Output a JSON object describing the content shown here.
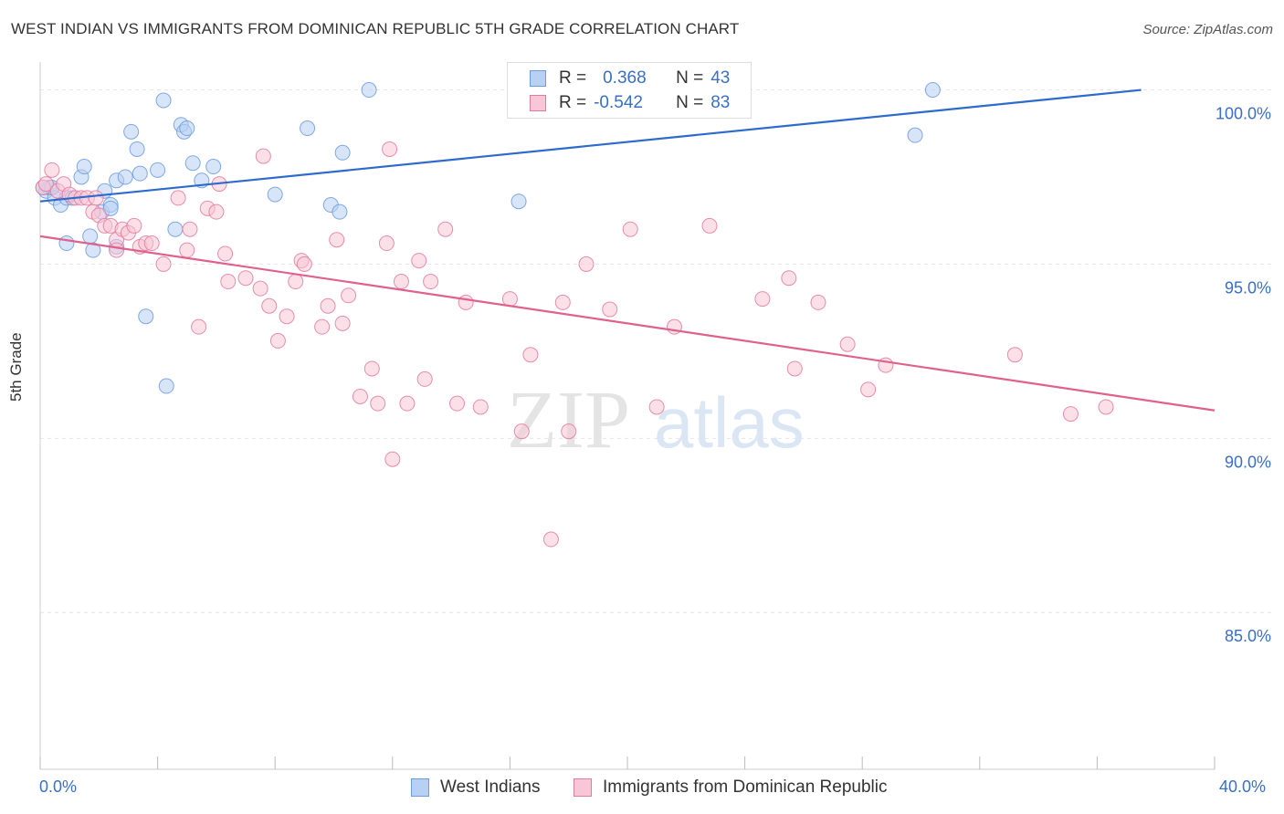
{
  "title": "WEST INDIAN VS IMMIGRANTS FROM DOMINICAN REPUBLIC 5TH GRADE CORRELATION CHART",
  "source": "Source: ZipAtlas.com",
  "watermark": {
    "zip": "ZIP",
    "atlas": "atlas"
  },
  "legend": {
    "r_label": "R =",
    "n_label": "N =",
    "rows": [
      {
        "r": "0.368",
        "n": "43",
        "color": "#6b9be0",
        "fill": "#b8d0f3"
      },
      {
        "r": "-0.542",
        "n": "83",
        "color": "#e37aa0",
        "fill": "#f8c6d6"
      }
    ]
  },
  "bottom_legend": [
    "West Indians",
    "Immigrants from Dominican Republic"
  ],
  "chart_data": {
    "type": "scatter",
    "title": "WEST INDIAN VS IMMIGRANTS FROM DOMINICAN REPUBLIC 5TH GRADE CORRELATION CHART",
    "xlabel": "",
    "ylabel": "5th Grade",
    "xlim": [
      0,
      40
    ],
    "ylim": [
      80.5,
      100.8
    ],
    "x_tick_labels": [
      "0.0%",
      "40.0%"
    ],
    "y_ticks": [
      85,
      90,
      95,
      100
    ],
    "y_tick_labels": [
      "85.0%",
      "90.0%",
      "95.0%",
      "100.0%"
    ],
    "grid": true,
    "legend_position": "top-center",
    "series": [
      {
        "name": "West Indians",
        "color": "#6b9be0",
        "fill": "#b8d0f3",
        "r": 0.368,
        "n": 43,
        "trend": [
          [
            0,
            96.8
          ],
          [
            37.5,
            100.0
          ]
        ],
        "points": [
          [
            0.2,
            97.1
          ],
          [
            0.3,
            97.2
          ],
          [
            0.5,
            96.9
          ],
          [
            0.7,
            96.7
          ],
          [
            0.9,
            96.9
          ],
          [
            1.1,
            96.9
          ],
          [
            1.4,
            97.5
          ],
          [
            1.5,
            97.8
          ],
          [
            1.7,
            95.8
          ],
          [
            0.9,
            95.6
          ],
          [
            1.8,
            95.4
          ],
          [
            2.1,
            96.5
          ],
          [
            2.2,
            97.1
          ],
          [
            2.4,
            96.7
          ],
          [
            2.4,
            96.6
          ],
          [
            2.6,
            95.5
          ],
          [
            2.6,
            97.4
          ],
          [
            2.9,
            97.5
          ],
          [
            3.1,
            98.8
          ],
          [
            3.3,
            98.3
          ],
          [
            3.4,
            97.6
          ],
          [
            3.6,
            93.5
          ],
          [
            4.0,
            97.7
          ],
          [
            4.2,
            99.7
          ],
          [
            4.3,
            91.5
          ],
          [
            4.6,
            96.0
          ],
          [
            4.8,
            99.0
          ],
          [
            4.9,
            98.8
          ],
          [
            5.0,
            98.9
          ],
          [
            5.2,
            97.9
          ],
          [
            5.5,
            97.4
          ],
          [
            5.9,
            97.8
          ],
          [
            8.0,
            97.0
          ],
          [
            9.1,
            98.9
          ],
          [
            9.9,
            96.7
          ],
          [
            10.2,
            96.5
          ],
          [
            10.3,
            98.2
          ],
          [
            11.2,
            100.0
          ],
          [
            16.3,
            96.8
          ],
          [
            29.8,
            98.7
          ],
          [
            30.4,
            100.0
          ],
          [
            0.1,
            97.2
          ],
          [
            0.4,
            97.2
          ]
        ]
      },
      {
        "name": "Immigrants from Dominican Republic",
        "color": "#e37aa0",
        "fill": "#f8c6d6",
        "r": -0.542,
        "n": 83,
        "trend": [
          [
            0,
            95.8
          ],
          [
            40,
            90.8
          ]
        ],
        "points": [
          [
            0.1,
            97.2
          ],
          [
            0.2,
            97.3
          ],
          [
            0.4,
            97.7
          ],
          [
            0.6,
            97.1
          ],
          [
            0.8,
            97.3
          ],
          [
            1.0,
            97.0
          ],
          [
            1.2,
            96.9
          ],
          [
            1.4,
            96.9
          ],
          [
            1.6,
            96.9
          ],
          [
            1.8,
            96.5
          ],
          [
            1.9,
            96.9
          ],
          [
            2.0,
            96.4
          ],
          [
            2.2,
            96.1
          ],
          [
            2.4,
            96.1
          ],
          [
            2.6,
            95.7
          ],
          [
            2.6,
            95.4
          ],
          [
            2.8,
            96.0
          ],
          [
            3.0,
            95.9
          ],
          [
            3.2,
            96.1
          ],
          [
            3.4,
            95.5
          ],
          [
            3.6,
            95.6
          ],
          [
            3.8,
            95.6
          ],
          [
            4.2,
            95.0
          ],
          [
            4.7,
            96.9
          ],
          [
            5.0,
            95.4
          ],
          [
            5.1,
            96.0
          ],
          [
            5.4,
            93.2
          ],
          [
            5.7,
            96.6
          ],
          [
            6.0,
            96.5
          ],
          [
            6.1,
            97.3
          ],
          [
            6.3,
            95.3
          ],
          [
            6.4,
            94.5
          ],
          [
            7.0,
            94.6
          ],
          [
            7.5,
            94.3
          ],
          [
            7.6,
            98.1
          ],
          [
            7.8,
            93.8
          ],
          [
            8.1,
            92.8
          ],
          [
            8.4,
            93.5
          ],
          [
            8.7,
            94.5
          ],
          [
            8.9,
            95.1
          ],
          [
            9.0,
            95.0
          ],
          [
            9.6,
            93.2
          ],
          [
            9.8,
            93.8
          ],
          [
            10.1,
            95.7
          ],
          [
            10.3,
            93.3
          ],
          [
            10.5,
            94.1
          ],
          [
            10.9,
            91.2
          ],
          [
            11.3,
            92.0
          ],
          [
            11.5,
            91.0
          ],
          [
            11.8,
            95.6
          ],
          [
            11.9,
            98.3
          ],
          [
            12.0,
            89.4
          ],
          [
            12.3,
            94.5
          ],
          [
            12.5,
            91.0
          ],
          [
            12.9,
            95.1
          ],
          [
            13.1,
            91.7
          ],
          [
            13.3,
            94.5
          ],
          [
            13.8,
            96.0
          ],
          [
            14.2,
            91.0
          ],
          [
            14.5,
            93.9
          ],
          [
            15.0,
            90.9
          ],
          [
            16.0,
            94.0
          ],
          [
            16.4,
            90.2
          ],
          [
            16.7,
            92.4
          ],
          [
            17.4,
            87.1
          ],
          [
            17.8,
            93.9
          ],
          [
            18.0,
            90.2
          ],
          [
            18.6,
            95.0
          ],
          [
            19.4,
            93.7
          ],
          [
            20.1,
            96.0
          ],
          [
            21.0,
            90.9
          ],
          [
            21.6,
            93.2
          ],
          [
            22.8,
            96.1
          ],
          [
            24.6,
            94.0
          ],
          [
            25.5,
            94.6
          ],
          [
            25.7,
            92.0
          ],
          [
            26.5,
            93.9
          ],
          [
            27.5,
            92.7
          ],
          [
            28.2,
            91.4
          ],
          [
            28.8,
            92.1
          ],
          [
            33.2,
            92.4
          ],
          [
            35.1,
            90.7
          ],
          [
            36.3,
            90.9
          ]
        ]
      }
    ]
  }
}
